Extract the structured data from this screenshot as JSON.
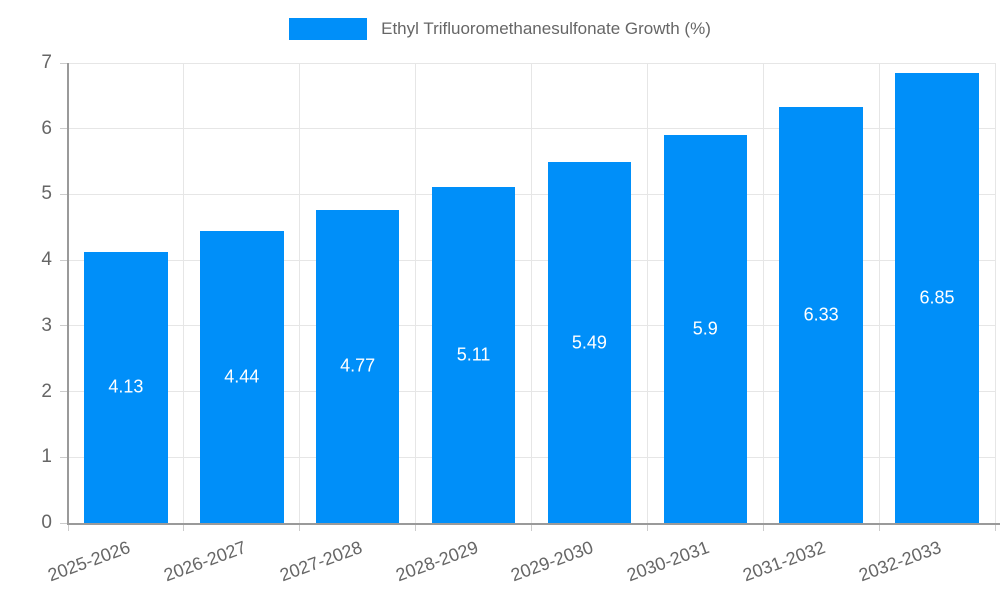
{
  "chart_data": {
    "type": "bar",
    "title": "Ethyl Trifluoromethanesulfonate Growth (%)",
    "legend": [
      "Ethyl Trifluoromethanesulfonate Growth (%)"
    ],
    "legend_position": "top",
    "categories": [
      "2025-2026",
      "2026-2027",
      "2027-2028",
      "2028-2029",
      "2029-2030",
      "2030-2031",
      "2031-2032",
      "2032-2033"
    ],
    "values": [
      4.13,
      4.44,
      4.77,
      5.11,
      5.49,
      5.9,
      6.33,
      6.85
    ],
    "value_labels": [
      "4.13",
      "4.44",
      "4.77",
      "5.11",
      "5.49",
      "5.9",
      "6.33",
      "6.85"
    ],
    "xlabel": "",
    "ylabel": "",
    "ylim": [
      0,
      7
    ],
    "y_ticks": [
      0,
      1,
      2,
      3,
      4,
      5,
      6,
      7
    ],
    "grid": true,
    "colors": {
      "bar": "#008ff9",
      "grid": "#e6e6e6",
      "tick": "#cccccc",
      "axis": "#9a9a9a",
      "text": "#666666",
      "value_label": "#ffffff",
      "background": "#ffffff"
    }
  }
}
